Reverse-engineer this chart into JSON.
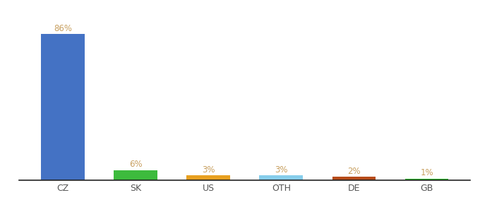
{
  "categories": [
    "CZ",
    "SK",
    "US",
    "OTH",
    "DE",
    "GB"
  ],
  "values": [
    86,
    6,
    3,
    3,
    2,
    1
  ],
  "bar_colors": [
    "#4472c4",
    "#3dbb3d",
    "#e8a020",
    "#87ceeb",
    "#b84c1a",
    "#2db82d"
  ],
  "labels": [
    "86%",
    "6%",
    "3%",
    "3%",
    "2%",
    "1%"
  ],
  "ylim": [
    0,
    96
  ],
  "bar_width": 0.6,
  "label_fontsize": 8.5,
  "tick_fontsize": 9,
  "background_color": "#ffffff",
  "label_color": "#c8a060",
  "tick_color": "#555555",
  "spine_color": "#222222"
}
